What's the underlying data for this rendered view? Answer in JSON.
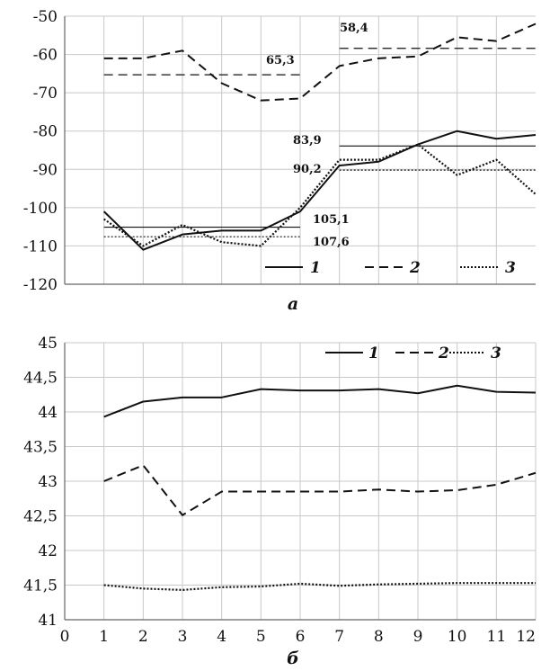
{
  "colors": {
    "line": "#111111",
    "grid": "#c8c8c8",
    "axis": "#666666",
    "background": "#ffffff"
  },
  "chart_data": [
    {
      "type": "line",
      "caption": "а",
      "x": [
        1,
        2,
        3,
        4,
        5,
        6,
        7,
        8,
        9,
        10,
        11,
        12
      ],
      "xlim": [
        0,
        12
      ],
      "ylim": [
        -120,
        -50
      ],
      "y_ticks": [
        -120,
        -110,
        -100,
        -90,
        -80,
        -70,
        -60,
        -50
      ],
      "y_tick_labels": [
        "-120",
        "-110",
        "-100",
        "-90",
        "-80",
        "-70",
        "-60",
        "-50"
      ],
      "grid": true,
      "legend": {
        "position": "bottom-right",
        "entries": [
          "1",
          "2",
          "3"
        ]
      },
      "series": [
        {
          "name": "1",
          "style": "solid",
          "values": [
            -101,
            -111,
            -107,
            -106,
            -106,
            -101,
            -89,
            -88,
            -83.5,
            -80,
            -82,
            -81
          ]
        },
        {
          "name": "2",
          "style": "dashed",
          "values": [
            -61,
            -61,
            -59,
            -67.5,
            -72,
            -71.5,
            -63,
            -61,
            -60.5,
            -55.5,
            -56.5,
            -52
          ]
        },
        {
          "name": "3",
          "style": "dotted",
          "values": [
            -103,
            -110,
            -104.5,
            -109,
            -110,
            -100,
            -87.5,
            -87.5,
            -83.5,
            -91.5,
            -87.5,
            -96.5
          ]
        }
      ],
      "reference_lines": [
        {
          "series": "1",
          "label": "105,1",
          "value": -105.1,
          "x_range": [
            1,
            6
          ]
        },
        {
          "series": "1",
          "label": "83,9",
          "value": -83.9,
          "x_range": [
            7,
            12
          ]
        },
        {
          "series": "2",
          "label": "65,3",
          "value": -65.3,
          "x_range": [
            1,
            6
          ]
        },
        {
          "series": "2",
          "label": "58,4",
          "value": -58.4,
          "x_range": [
            7,
            12
          ]
        },
        {
          "series": "3",
          "label": "107,6",
          "value": -107.6,
          "x_range": [
            1,
            6
          ]
        },
        {
          "series": "3",
          "label": "90,2",
          "value": -90.2,
          "x_range": [
            7,
            12
          ]
        }
      ]
    },
    {
      "type": "line",
      "caption": "б",
      "x": [
        1,
        2,
        3,
        4,
        5,
        6,
        7,
        8,
        9,
        10,
        11,
        12
      ],
      "x_ticks": [
        0,
        1,
        2,
        3,
        4,
        5,
        6,
        7,
        8,
        9,
        10,
        11,
        12
      ],
      "x_tick_labels": [
        "0",
        "1",
        "2",
        "3",
        "4",
        "5",
        "6",
        "7",
        "8",
        "9",
        "10",
        "11",
        "12"
      ],
      "xlim": [
        0,
        12
      ],
      "ylim": [
        41,
        45
      ],
      "y_ticks": [
        41,
        41.5,
        42,
        42.5,
        43,
        43.5,
        44,
        44.5,
        45
      ],
      "y_tick_labels": [
        "41",
        "41,5",
        "42",
        "42,5",
        "43",
        "43,5",
        "44",
        "44,5",
        "45"
      ],
      "grid": true,
      "legend": {
        "position": "top-right",
        "entries": [
          "1",
          "2",
          "3"
        ]
      },
      "series": [
        {
          "name": "1",
          "style": "solid",
          "values": [
            43.93,
            44.15,
            44.21,
            44.21,
            44.33,
            44.31,
            44.31,
            44.33,
            44.27,
            44.38,
            44.29,
            44.28
          ]
        },
        {
          "name": "2",
          "style": "dashed",
          "values": [
            43.0,
            43.23,
            42.51,
            42.85,
            42.85,
            42.85,
            42.85,
            42.88,
            42.85,
            42.87,
            42.95,
            43.12
          ]
        },
        {
          "name": "3",
          "style": "dotted",
          "values": [
            41.5,
            41.45,
            41.43,
            41.47,
            41.48,
            41.52,
            41.49,
            41.51,
            41.52,
            41.53,
            41.53,
            41.53
          ]
        }
      ]
    }
  ]
}
